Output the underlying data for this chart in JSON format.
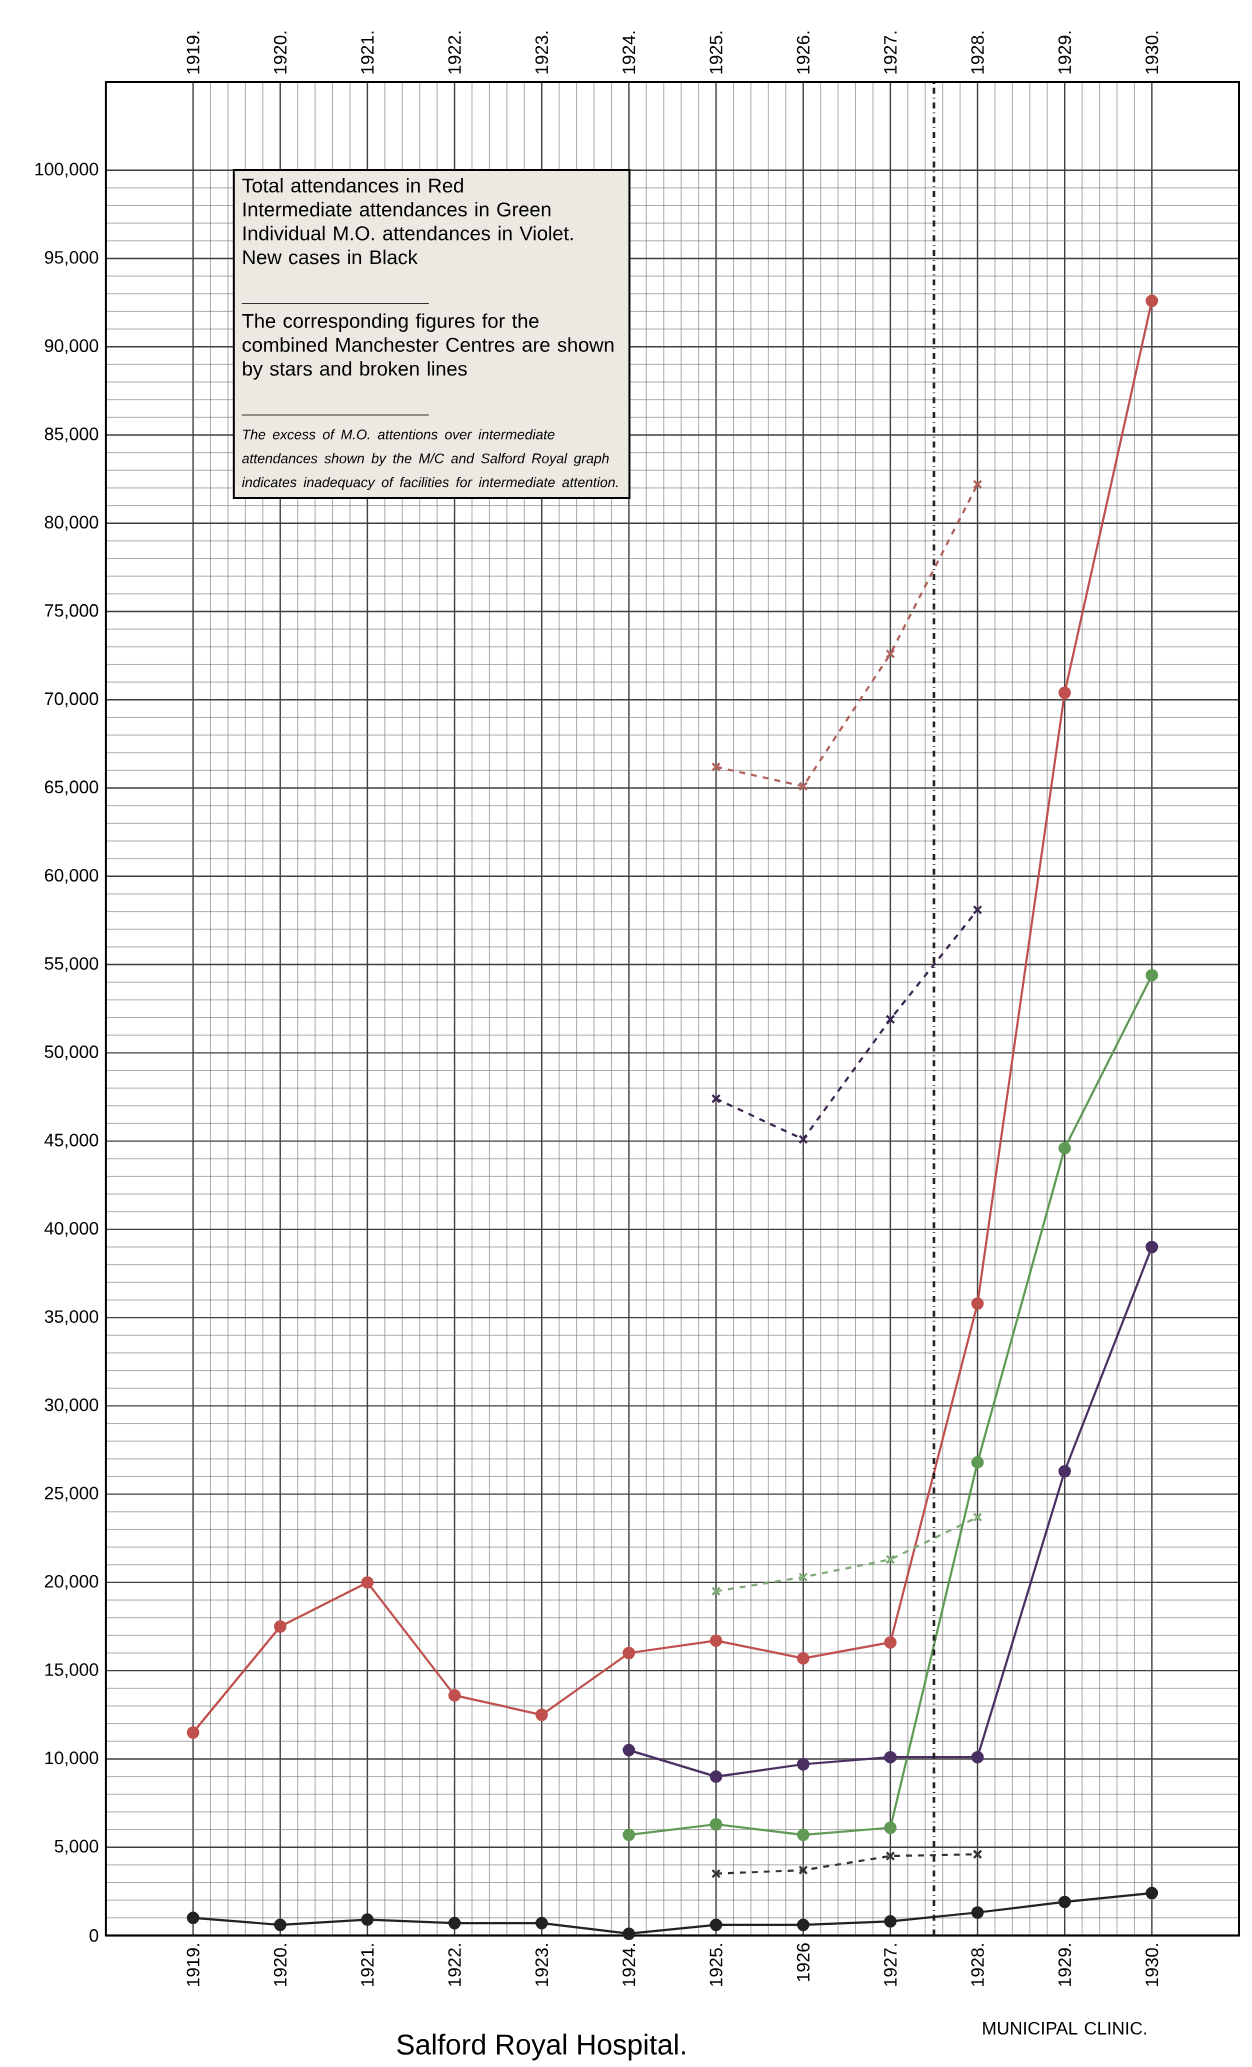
{
  "chart_data": {
    "type": "line",
    "annotations": [
      "Total attendances in Red",
      "Intermediate attendances in Green",
      "Individual M.O. attendances in Violet.",
      "New cases in Black",
      "The corresponding figures for the combined Manchester Centres are shown by stars and broken lines",
      "The excess of M.O. attentions over intermediate attendances shown by the M/C and Salford Royal graph indicates inadequacy of facilities for intermediate attention.",
      "Salford Royal Hospital.",
      "MUNICIPAL CLINIC."
    ],
    "xlim": [
      1918,
      1931
    ],
    "xticks": [
      {
        "value": 1919,
        "label": "1919."
      },
      {
        "value": 1920,
        "label": "1920."
      },
      {
        "value": 1921,
        "label": "1921."
      },
      {
        "value": 1922,
        "label": "1922."
      },
      {
        "value": 1923,
        "label": "1923."
      },
      {
        "value": 1924,
        "label": "1924."
      },
      {
        "value": 1925,
        "label": "1925."
      },
      {
        "value": 1926,
        "label": "1926"
      },
      {
        "value": 1927,
        "label": "1927."
      },
      {
        "value": 1928,
        "label": "1928."
      },
      {
        "value": 1929,
        "label": "1929."
      },
      {
        "value": 1930,
        "label": "1930."
      }
    ],
    "x2lim": [
      1918,
      1931
    ],
    "x2ticks": [
      {
        "value": 1919,
        "label": "1919."
      },
      {
        "value": 1920,
        "label": "1920."
      },
      {
        "value": 1921,
        "label": "1921."
      },
      {
        "value": 1922,
        "label": "1922."
      },
      {
        "value": 1923,
        "label": "1923."
      },
      {
        "value": 1924,
        "label": "1924."
      },
      {
        "value": 1925,
        "label": "1925."
      },
      {
        "value": 1926,
        "label": "1926."
      },
      {
        "value": 1927,
        "label": "1927."
      },
      {
        "value": 1928,
        "label": "1928."
      },
      {
        "value": 1929,
        "label": "1929."
      },
      {
        "value": 1930,
        "label": "1930."
      }
    ],
    "ylim": [
      0,
      105000
    ],
    "yticks": [
      {
        "value": 0,
        "label": "0"
      },
      {
        "value": 5000,
        "label": "5,000"
      },
      {
        "value": 10000,
        "label": "10,000"
      },
      {
        "value": 15000,
        "label": "15,000"
      },
      {
        "value": 20000,
        "label": "20,000"
      },
      {
        "value": 25000,
        "label": "25,000"
      },
      {
        "value": 30000,
        "label": "30,000"
      },
      {
        "value": 35000,
        "label": "35,000"
      },
      {
        "value": 40000,
        "label": "40,000"
      },
      {
        "value": 45000,
        "label": "45,000"
      },
      {
        "value": 50000,
        "label": "50,000"
      },
      {
        "value": 55000,
        "label": "55,000"
      },
      {
        "value": 60000,
        "label": "60,000"
      },
      {
        "value": 65000,
        "label": "65,000"
      },
      {
        "value": 70000,
        "label": "70,000"
      },
      {
        "value": 75000,
        "label": "75,000"
      },
      {
        "value": 80000,
        "label": "80,000"
      },
      {
        "value": 85000,
        "label": "85,000"
      },
      {
        "value": 90000,
        "label": "90,000"
      },
      {
        "value": 95000,
        "label": "95,000"
      },
      {
        "value": 100000,
        "label": "100,000"
      }
    ],
    "grid": true,
    "ref_lines": [
      {
        "axis": "x",
        "value": 1927.5,
        "color": "#222222",
        "line_style": "dashdotted"
      }
    ],
    "series": [
      {
        "color": "#c0504d",
        "marker": "circle",
        "line_style": "solid",
        "x": [
          1919,
          1920,
          1921,
          1922,
          1923,
          1924,
          1925,
          1926,
          1927,
          1928,
          1929,
          1930
        ],
        "values": [
          11500,
          17500,
          20000,
          13600,
          12500,
          16000,
          16700,
          15700,
          16600,
          35800,
          70400,
          92600
        ]
      },
      {
        "color": "#5f9a55",
        "marker": "circle",
        "line_style": "solid",
        "x": [
          1924,
          1925,
          1926,
          1927,
          1928,
          1929,
          1930
        ],
        "values": [
          5700,
          6300,
          5700,
          6100,
          26800,
          44600,
          54400
        ]
      },
      {
        "color": "#4a2f63",
        "marker": "circle",
        "line_style": "solid",
        "x": [
          1924,
          1925,
          1926,
          1927,
          1928,
          1929,
          1930
        ],
        "values": [
          10500,
          9000,
          9700,
          10100,
          10100,
          26300,
          39000
        ]
      },
      {
        "color": "#222222",
        "marker": "circle",
        "line_style": "solid",
        "x": [
          1919,
          1920,
          1921,
          1922,
          1923,
          1924,
          1925,
          1926,
          1927,
          1928,
          1929,
          1930
        ],
        "values": [
          1000,
          600,
          900,
          700,
          700,
          100,
          600,
          600,
          800,
          1300,
          1900,
          2400
        ]
      },
      {
        "color": "#b0605a",
        "marker": "cross",
        "line_style": "dashed",
        "x": [
          1925,
          1926,
          1927,
          1928
        ],
        "values": [
          66200,
          65100,
          72600,
          82200
        ]
      },
      {
        "color": "#7faa78",
        "marker": "cross",
        "line_style": "dashed",
        "x": [
          1925,
          1926,
          1927,
          1928
        ],
        "values": [
          19500,
          20300,
          21300,
          23700
        ]
      },
      {
        "color": "#3a2550",
        "marker": "cross",
        "line_style": "dashed",
        "x": [
          1925,
          1926,
          1927,
          1928
        ],
        "values": [
          47400,
          45100,
          51900,
          58100
        ]
      },
      {
        "color": "#333333",
        "marker": "cross",
        "line_style": "dashed",
        "x": [
          1925,
          1926,
          1927,
          1928
        ],
        "values": [
          3500,
          3700,
          4500,
          4600
        ]
      }
    ]
  }
}
